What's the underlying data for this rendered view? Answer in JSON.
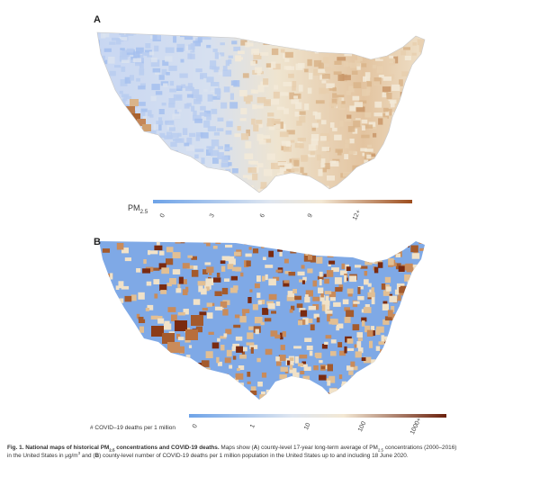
{
  "panel_a": {
    "label": "A",
    "legend_title": "PM",
    "legend_title_sub": "2.5",
    "ticks": [
      "0",
      "3",
      "6",
      "9",
      "12+"
    ],
    "colors": {
      "low": "#6ea3e8",
      "mid": "#f6f0dc",
      "high": "#9d4d1e"
    }
  },
  "panel_b": {
    "label": "B",
    "legend_title": "# COVID–19 deaths per 1 million",
    "ticks": [
      "0",
      "1",
      "10",
      "100",
      "1000+"
    ],
    "colors": {
      "low": "#6ea3e8",
      "mid": "#f6f0dc",
      "high": "#7a2a10",
      "zero": "#7fa9e6"
    }
  },
  "caption": {
    "title_prefix": "Fig. 1. National maps of historical PM",
    "title_sub": "2.5",
    "title_suffix": " concentrations and COVID-19 deaths.",
    "line1_prefix": " Maps show (",
    "a_letter": "A",
    "line1_mid": ") county-level 17-year long-term average of PM",
    "line1_sub": "2.5",
    "line1_suffix": " concentrations (2000–2016)",
    "line2_prefix": "in the United States in μg/m",
    "line2_sup": "3",
    "line2_mid": " and (",
    "b_letter": "B",
    "line2_suffix": ") county-level number of COVID-19 deaths per 1 million population in the United States up to and including 18 June 2020."
  }
}
